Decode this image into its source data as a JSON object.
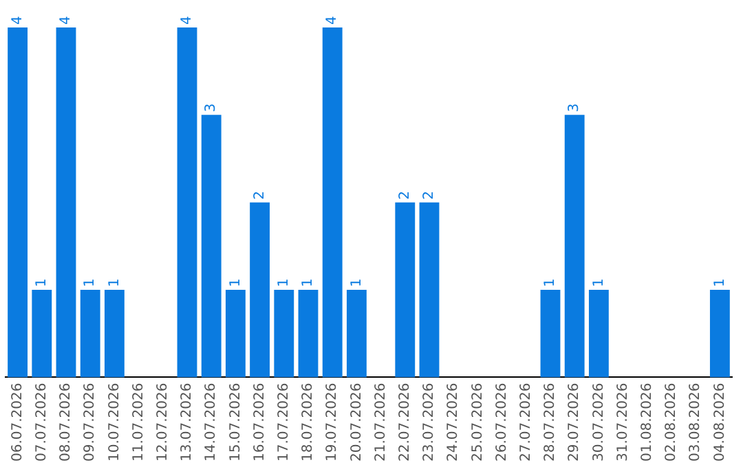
{
  "chart_data": {
    "type": "bar",
    "categories": [
      "06.07.2026",
      "07.07.2026",
      "08.07.2026",
      "09.07.2026",
      "10.07.2026",
      "11.07.2026",
      "12.07.2026",
      "13.07.2026",
      "14.07.2026",
      "15.07.2026",
      "16.07.2026",
      "17.07.2026",
      "18.07.2026",
      "19.07.2026",
      "20.07.2026",
      "21.07.2026",
      "22.07.2026",
      "23.07.2026",
      "24.07.2026",
      "25.07.2026",
      "26.07.2026",
      "27.07.2026",
      "28.07.2026",
      "29.07.2026",
      "30.07.2026",
      "31.07.2026",
      "01.08.2026",
      "02.08.2026",
      "03.08.2026",
      "04.08.2026"
    ],
    "values": [
      4,
      1,
      4,
      1,
      1,
      0,
      0,
      4,
      3,
      1,
      2,
      1,
      1,
      4,
      1,
      0,
      2,
      2,
      0,
      0,
      0,
      0,
      1,
      3,
      1,
      0,
      0,
      0,
      0,
      1
    ],
    "value_labels": [
      "4",
      "1",
      "4",
      "1",
      "1",
      null,
      null,
      "4",
      "3",
      "1",
      "2",
      "1",
      "1",
      "4",
      "1",
      null,
      "2",
      "2",
      null,
      null,
      null,
      null,
      "1",
      "3",
      "1",
      null,
      null,
      null,
      null,
      "1"
    ],
    "color": "#0a7be0",
    "grid": false,
    "legend": false,
    "tick_labels": "x"
  }
}
